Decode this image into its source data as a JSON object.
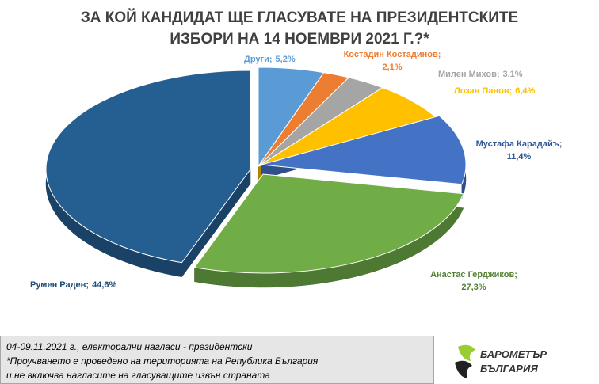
{
  "chart_data": {
    "type": "pie",
    "title": [
      "ЗА КОЙ КАНДИДАТ ЩЕ ГЛАСУВАТЕ НА ПРЕЗИДЕНТСКИТЕ",
      "ИЗБОРИ НА 14 НОЕМВРИ 2021 Г.?*"
    ],
    "categories": [
      "Други;",
      "Костадин Костадинов;",
      "Милен Михов;",
      "Лозан Панов;",
      "Мустафа Карадайъ;",
      "Анастас Герджиков;",
      "Румен Радев;"
    ],
    "values": [
      5.2,
      2.1,
      3.1,
      6.4,
      11.4,
      27.3,
      44.6
    ],
    "value_labels": [
      "5,2%",
      "2,1%",
      "3,1%",
      "6,4%",
      "11,4%",
      "27,3%",
      "44,6%"
    ],
    "colors": [
      "#5b9bd5",
      "#ed7d31",
      "#a5a5a5",
      "#ffc000",
      "#4472c4",
      "#70ad47",
      "#255e91"
    ],
    "label_colors": [
      "#5b9bd5",
      "#ed7d31",
      "#a5a5a5",
      "#ffc000",
      "#2f5597",
      "#548235",
      "#1f4e79"
    ]
  },
  "footnote": [
    "04-09.11.2021  г., електорални нагласи - президентски",
    "*Проучването е проведено на територията на Република България",
    "и не включва нагласите на гласуващите извън страната"
  ],
  "logo": [
    "БАРОМЕТЪР",
    "БЪЛГАРИЯ"
  ]
}
